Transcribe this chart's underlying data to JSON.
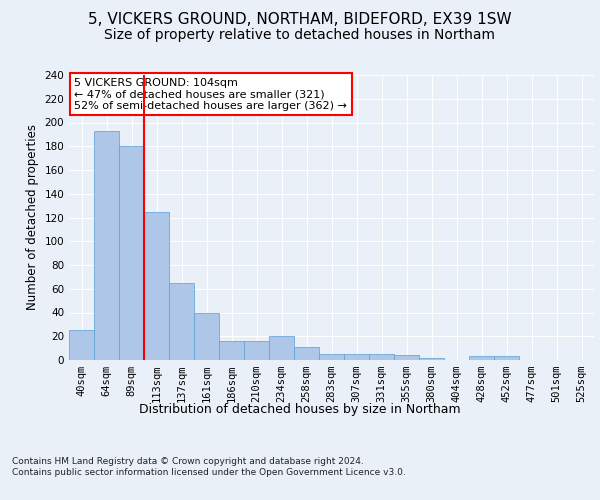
{
  "title_line1": "5, VICKERS GROUND, NORTHAM, BIDEFORD, EX39 1SW",
  "title_line2": "Size of property relative to detached houses in Northam",
  "xlabel": "Distribution of detached houses by size in Northam",
  "ylabel": "Number of detached properties",
  "footnote": "Contains HM Land Registry data © Crown copyright and database right 2024.\nContains public sector information licensed under the Open Government Licence v3.0.",
  "categories": [
    "40sqm",
    "64sqm",
    "89sqm",
    "113sqm",
    "137sqm",
    "161sqm",
    "186sqm",
    "210sqm",
    "234sqm",
    "258sqm",
    "283sqm",
    "307sqm",
    "331sqm",
    "355sqm",
    "380sqm",
    "404sqm",
    "428sqm",
    "452sqm",
    "477sqm",
    "501sqm",
    "525sqm"
  ],
  "values": [
    25,
    193,
    180,
    125,
    65,
    40,
    16,
    16,
    20,
    11,
    5,
    5,
    5,
    4,
    2,
    0,
    3,
    3,
    0,
    0,
    0
  ],
  "bar_color": "#aec6e8",
  "bar_edge_color": "#5a9fd4",
  "vline_x": 2.5,
  "vline_color": "red",
  "annotation_text": "5 VICKERS GROUND: 104sqm\n← 47% of detached houses are smaller (321)\n52% of semi-detached houses are larger (362) →",
  "annotation_box_color": "white",
  "annotation_box_edge_color": "red",
  "ylim": [
    0,
    240
  ],
  "yticks": [
    0,
    20,
    40,
    60,
    80,
    100,
    120,
    140,
    160,
    180,
    200,
    220,
    240
  ],
  "bg_color": "#eaf0f8",
  "plot_bg_color": "#eaf0f8",
  "grid_color": "white",
  "title_fontsize": 11,
  "subtitle_fontsize": 10,
  "axis_label_fontsize": 9,
  "tick_fontsize": 7.5,
  "ylabel_fontsize": 8.5
}
